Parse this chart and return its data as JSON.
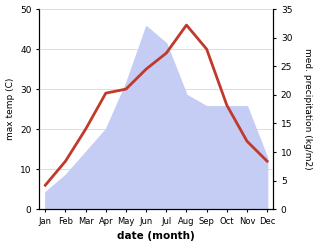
{
  "months": [
    "Jan",
    "Feb",
    "Mar",
    "Apr",
    "May",
    "Jun",
    "Jul",
    "Aug",
    "Sep",
    "Oct",
    "Nov",
    "Dec"
  ],
  "temp": [
    6,
    12,
    20,
    29,
    30,
    35,
    39,
    46,
    40,
    26,
    17,
    12
  ],
  "precip": [
    3,
    6,
    10,
    14,
    22,
    32,
    29,
    20,
    18,
    18,
    18,
    9
  ],
  "temp_ylim": [
    0,
    50
  ],
  "precip_ylim": [
    0,
    35
  ],
  "temp_color": "#c0392b",
  "precip_fill_color": "#c5cdf5",
  "xlabel": "date (month)",
  "ylabel_left": "max temp (C)",
  "ylabel_right": "med. precipitation (kg/m2)",
  "temp_yticks": [
    0,
    10,
    20,
    30,
    40,
    50
  ],
  "precip_yticks": [
    0,
    5,
    10,
    15,
    20,
    25,
    30,
    35
  ],
  "linewidth": 2.0
}
